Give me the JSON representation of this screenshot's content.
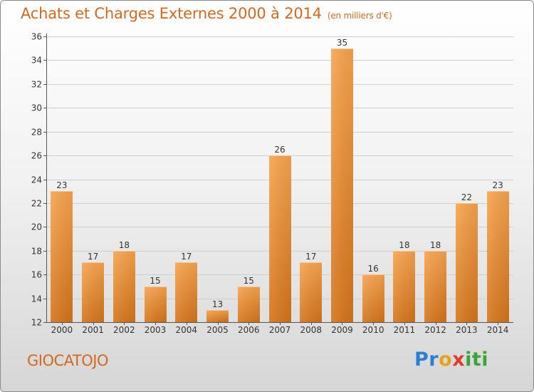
{
  "header": {
    "title": "Achats et Charges Externes 2000 à 2014",
    "unit": "(en milliers d'€)"
  },
  "footer": {
    "commune": "GIOCATOJO"
  },
  "logo": {
    "letters": [
      {
        "char": "P",
        "color": "#2a7fd4"
      },
      {
        "char": "r",
        "color": "#2a7fd4"
      },
      {
        "char": "o",
        "color": "#e8a21a"
      },
      {
        "char": "x",
        "color": "#e03a2a"
      },
      {
        "char": "i",
        "color": "#3aa43a"
      },
      {
        "char": "t",
        "color": "#3aa43a"
      },
      {
        "char": "i",
        "color": "#3aa43a"
      }
    ]
  },
  "chart_data": {
    "type": "bar",
    "title": "Achats et Charges Externes 2000 à 2014",
    "subtitle": "(en milliers d'€)",
    "categories": [
      "2000",
      "2001",
      "2002",
      "2003",
      "2004",
      "2005",
      "2006",
      "2007",
      "2008",
      "2009",
      "2010",
      "2011",
      "2012",
      "2013",
      "2014"
    ],
    "values": [
      23,
      17,
      18,
      15,
      17,
      13,
      15,
      26,
      17,
      35,
      16,
      18,
      18,
      22,
      23
    ],
    "ylim": [
      12,
      36
    ],
    "yticks": [
      12,
      14,
      16,
      18,
      20,
      22,
      24,
      26,
      28,
      30,
      32,
      34,
      36
    ],
    "grid": true,
    "bar_color": "#f0a040"
  }
}
